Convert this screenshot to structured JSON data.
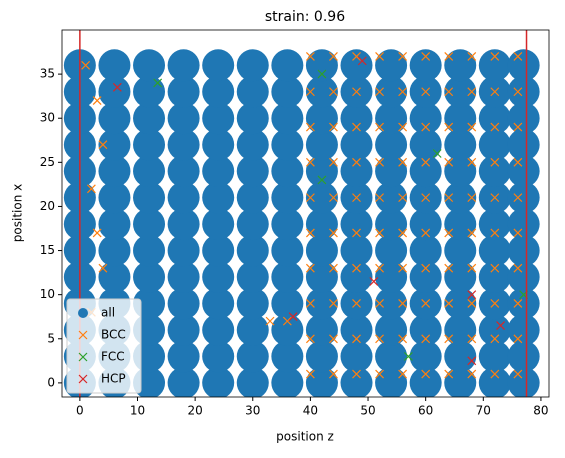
{
  "chart_data": {
    "type": "scatter",
    "title": "strain: 0.96",
    "xlabel": "position z",
    "ylabel": "position x",
    "xlim": [
      -3.1,
      81.4
    ],
    "ylim": [
      -1.6,
      40
    ],
    "xticks": [
      0,
      10,
      20,
      30,
      40,
      50,
      60,
      70,
      80
    ],
    "yticks": [
      0,
      5,
      10,
      15,
      20,
      25,
      30,
      35
    ],
    "legend": "lower left",
    "vlines": {
      "color": "#d62728",
      "x": [
        0,
        77.5
      ]
    },
    "series": [
      {
        "name": "all",
        "color": "#1f77b4",
        "marker": "o",
        "x": [
          0,
          6,
          12,
          18,
          24,
          30,
          36,
          42,
          48,
          54,
          60,
          66,
          72,
          77,
          0,
          6,
          12,
          18,
          24,
          30,
          36,
          42,
          48,
          54,
          60,
          66,
          72,
          77,
          0,
          6,
          12,
          18,
          24,
          30,
          36,
          42,
          48,
          54,
          60,
          66,
          72,
          77,
          0,
          6,
          12,
          18,
          24,
          30,
          36,
          42,
          48,
          54,
          60,
          66,
          72,
          77,
          0,
          6,
          12,
          18,
          24,
          30,
          36,
          42,
          48,
          54,
          60,
          66,
          72,
          77,
          0,
          6,
          12,
          18,
          24,
          30,
          36,
          42,
          48,
          54,
          60,
          66,
          72,
          77,
          0,
          6,
          12,
          18,
          24,
          30,
          36,
          42,
          48,
          54,
          60,
          66,
          72,
          77,
          0,
          6,
          12,
          18,
          24,
          30,
          36,
          42,
          48,
          54,
          60,
          66,
          72,
          77,
          0,
          6,
          12,
          18,
          24,
          30,
          36,
          42,
          48,
          54,
          60,
          66,
          72,
          77,
          0,
          6,
          12,
          18,
          24,
          30,
          36,
          42,
          48,
          54,
          60,
          66,
          72,
          77,
          0,
          6,
          12,
          18,
          24,
          30,
          36,
          42,
          48,
          54,
          60,
          66,
          72,
          77,
          0,
          6,
          12,
          18,
          24,
          30,
          36,
          42,
          48,
          54,
          60,
          66,
          72,
          77,
          0,
          6,
          12,
          18,
          24,
          30,
          36,
          42,
          48,
          54,
          60,
          66,
          72,
          77
        ],
        "values": [
          0,
          0,
          0,
          0,
          0,
          0,
          0,
          0,
          0,
          0,
          0,
          0,
          0,
          0,
          3,
          3,
          3,
          3,
          3,
          3,
          3,
          3,
          3,
          3,
          3,
          3,
          3,
          3,
          6,
          6,
          6,
          6,
          6,
          6,
          6,
          6,
          6,
          6,
          6,
          6,
          6,
          6,
          9,
          9,
          9,
          9,
          9,
          9,
          9,
          9,
          9,
          9,
          9,
          9,
          9,
          9,
          12,
          12,
          12,
          12,
          12,
          12,
          12,
          12,
          12,
          12,
          12,
          12,
          12,
          12,
          15,
          15,
          15,
          15,
          15,
          15,
          15,
          15,
          15,
          15,
          15,
          15,
          15,
          15,
          18,
          18,
          18,
          18,
          18,
          18,
          18,
          18,
          18,
          18,
          18,
          18,
          18,
          18,
          21,
          21,
          21,
          21,
          21,
          21,
          21,
          21,
          21,
          21,
          21,
          21,
          21,
          21,
          24,
          24,
          24,
          24,
          24,
          24,
          24,
          24,
          24,
          24,
          24,
          24,
          24,
          24,
          27,
          27,
          27,
          27,
          27,
          27,
          27,
          27,
          27,
          27,
          27,
          27,
          27,
          27,
          30,
          30,
          30,
          30,
          30,
          30,
          30,
          30,
          30,
          30,
          30,
          30,
          30,
          30,
          33,
          33,
          33,
          33,
          33,
          33,
          33,
          33,
          33,
          33,
          33,
          33,
          33,
          33,
          36,
          36,
          36,
          36,
          36,
          36,
          36,
          36,
          36,
          36,
          36,
          36,
          36,
          36
        ]
      },
      {
        "name": "BCC",
        "color": "#ff7f0e",
        "marker": "x",
        "x": [
          40,
          44,
          48,
          52,
          56,
          60,
          64,
          68,
          72,
          76,
          40,
          44,
          48,
          52,
          56,
          60,
          64,
          68,
          72,
          76,
          40,
          44,
          48,
          52,
          56,
          60,
          64,
          68,
          72,
          76,
          40,
          44,
          48,
          52,
          56,
          60,
          64,
          68,
          72,
          76,
          40,
          44,
          48,
          52,
          56,
          60,
          64,
          68,
          72,
          76,
          40,
          44,
          48,
          52,
          56,
          60,
          64,
          68,
          72,
          76,
          40,
          44,
          48,
          52,
          56,
          60,
          64,
          68,
          72,
          76,
          40,
          44,
          48,
          52,
          56,
          60,
          64,
          68,
          72,
          76,
          40,
          44,
          48,
          52,
          56,
          60,
          64,
          68,
          72,
          76,
          40,
          44,
          48,
          52,
          56,
          60,
          64,
          68,
          72,
          76,
          1,
          3,
          4,
          2,
          3,
          4,
          2,
          36,
          33
        ],
        "values": [
          1,
          1,
          1,
          1,
          1,
          1,
          1,
          1,
          1,
          1,
          5,
          5,
          5,
          5,
          5,
          5,
          5,
          5,
          5,
          5,
          9,
          9,
          9,
          9,
          9,
          9,
          9,
          9,
          9,
          9,
          13,
          13,
          13,
          13,
          13,
          13,
          13,
          13,
          13,
          13,
          17,
          17,
          17,
          17,
          17,
          17,
          17,
          17,
          17,
          17,
          21,
          21,
          21,
          21,
          21,
          21,
          21,
          21,
          21,
          21,
          25,
          25,
          25,
          25,
          25,
          25,
          25,
          25,
          25,
          25,
          29,
          29,
          29,
          29,
          29,
          29,
          29,
          29,
          29,
          29,
          33,
          33,
          33,
          33,
          33,
          33,
          33,
          33,
          33,
          33,
          37,
          37,
          37,
          37,
          37,
          37,
          37,
          37,
          37,
          37,
          36,
          32,
          27,
          22,
          17,
          13,
          8,
          7,
          7
        ]
      },
      {
        "name": "FCC",
        "color": "#2ca02c",
        "marker": "x",
        "x": [
          13.5,
          42,
          42,
          62,
          57,
          77
        ],
        "values": [
          34,
          35,
          23,
          26,
          3,
          10
        ]
      },
      {
        "name": "HCP",
        "color": "#d62728",
        "marker": "x",
        "x": [
          6.5,
          49,
          51,
          68,
          68,
          73,
          37
        ],
        "values": [
          33.5,
          36.5,
          11.5,
          10,
          2.5,
          6.5,
          7.5
        ]
      }
    ]
  }
}
